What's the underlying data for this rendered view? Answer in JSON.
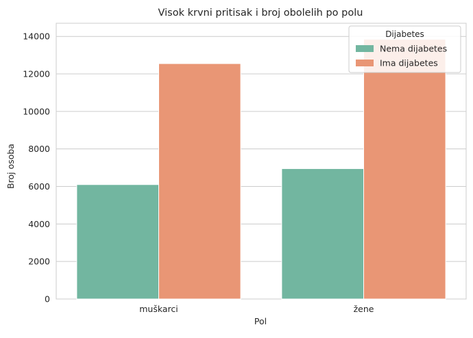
{
  "chart_data": {
    "type": "bar",
    "title": "Visok krvni pritisak i broj obolelih po polu",
    "xlabel": "Pol",
    "ylabel": "Broj osoba",
    "categories": [
      "muškarci",
      "žene"
    ],
    "series": [
      {
        "name": "Nema dijabetes",
        "values": [
          6100,
          6950
        ],
        "color": "#72b6a0"
      },
      {
        "name": "Ima dijabetes",
        "values": [
          12550,
          13850
        ],
        "color": "#e99675"
      }
    ],
    "ylim": [
      0,
      14700
    ],
    "yticks": [
      0,
      2000,
      4000,
      6000,
      8000,
      10000,
      12000,
      14000
    ],
    "grid": true,
    "legend": {
      "title": "Dijabetes",
      "position": "top-right"
    },
    "style": {
      "grid_color": "#cccccc",
      "text_color": "#262626",
      "axis_color": "#cccccc"
    }
  }
}
